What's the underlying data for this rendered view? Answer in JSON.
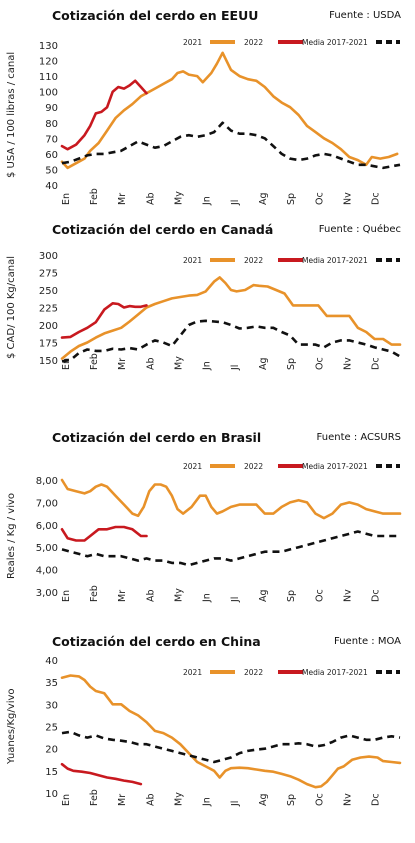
{
  "legend_labels": [
    "2021",
    "2022",
    "Media 2017-2021"
  ],
  "colors": {
    "y2021": "#e8922a",
    "y2022": "#c8191f",
    "media": "#111111"
  },
  "months": [
    "En",
    "Feb",
    "Mr",
    "Ab",
    "My",
    "Jn",
    "Jl",
    "Ag",
    "Sp",
    "Oc",
    "Nv",
    "Dc"
  ],
  "chart_data": [
    {
      "type": "line",
      "title": "Cotización del cerdo en EEUU",
      "source": "Fuente : USDA",
      "ylabel": "$ USA / 100 libras / canal",
      "ylim": [
        40,
        130
      ],
      "yticks": [
        40,
        50,
        60,
        70,
        80,
        90,
        100,
        110,
        120,
        130
      ],
      "xlim": [
        0,
        12
      ],
      "series": [
        {
          "name": "2021",
          "x": [
            0,
            0.2,
            0.5,
            0.8,
            1.0,
            1.3,
            1.6,
            1.9,
            2.2,
            2.5,
            2.8,
            3.0,
            3.3,
            3.6,
            3.9,
            4.1,
            4.3,
            4.5,
            4.8,
            5.0,
            5.3,
            5.5,
            5.7,
            6.0,
            6.3,
            6.6,
            6.9,
            7.2,
            7.5,
            7.8,
            8.1,
            8.4,
            8.7,
            9.0,
            9.3,
            9.6,
            9.9,
            10.2,
            10.5,
            10.8,
            11.0,
            11.3,
            11.6,
            11.9
          ],
          "y": [
            55,
            51,
            54,
            57,
            62,
            67,
            75,
            83,
            88,
            92,
            97,
            99,
            102,
            105,
            108,
            112,
            113,
            111,
            110,
            106,
            112,
            118,
            125,
            114,
            110,
            108,
            107,
            103,
            97,
            93,
            90,
            85,
            78,
            74,
            70,
            67,
            63,
            58,
            56,
            53,
            58,
            57,
            58,
            60
          ]
        },
        {
          "name": "2022",
          "x": [
            0,
            0.2,
            0.5,
            0.8,
            1.0,
            1.2,
            1.4,
            1.6,
            1.8,
            2.0,
            2.2,
            2.4,
            2.6,
            2.8,
            3.0
          ],
          "y": [
            65,
            63,
            66,
            72,
            78,
            86,
            87,
            90,
            100,
            103,
            102,
            104,
            107,
            103,
            99
          ]
        },
        {
          "name": "Media 2017-2021",
          "x": [
            0,
            0.3,
            0.6,
            0.9,
            1.2,
            1.5,
            1.8,
            2.1,
            2.4,
            2.7,
            3.0,
            3.3,
            3.6,
            3.9,
            4.2,
            4.5,
            4.8,
            5.1,
            5.4,
            5.7,
            6.0,
            6.3,
            6.6,
            6.9,
            7.2,
            7.5,
            7.8,
            8.1,
            8.4,
            8.7,
            9.0,
            9.3,
            9.6,
            9.9,
            10.2,
            10.5,
            10.8,
            11.1,
            11.4,
            11.7,
            12.0
          ],
          "y": [
            54,
            55,
            57,
            59,
            60,
            60,
            61,
            62,
            65,
            68,
            66,
            64,
            65,
            68,
            71,
            72,
            71,
            72,
            74,
            80,
            75,
            73,
            73,
            72,
            70,
            65,
            60,
            57,
            56,
            57,
            59,
            60,
            59,
            57,
            55,
            53,
            53,
            52,
            51,
            52,
            53
          ]
        }
      ]
    },
    {
      "type": "line",
      "title": "Cotización del cerdo en Canadá",
      "source": "Fuente : Québec",
      "ylabel": "$ CAD/ 100 Kg/canal",
      "ylim": [
        150,
        300
      ],
      "yticks": [
        150,
        175,
        200,
        225,
        250,
        275,
        300
      ],
      "xlim": [
        0,
        12
      ],
      "series": [
        {
          "name": "2021",
          "x": [
            0,
            0.3,
            0.6,
            0.9,
            1.2,
            1.5,
            1.8,
            2.1,
            2.4,
            2.7,
            3.0,
            3.3,
            3.6,
            3.9,
            4.2,
            4.5,
            4.8,
            5.1,
            5.4,
            5.6,
            5.8,
            6.0,
            6.2,
            6.5,
            6.8,
            7.0,
            7.3,
            7.6,
            7.9,
            8.2,
            8.5,
            8.8,
            9.1,
            9.4,
            9.7,
            10.0,
            10.2,
            10.5,
            10.8,
            11.1,
            11.4,
            11.7,
            12.0
          ],
          "y": [
            152,
            162,
            170,
            175,
            182,
            188,
            192,
            196,
            205,
            215,
            225,
            230,
            234,
            238,
            240,
            242,
            243,
            248,
            262,
            268,
            260,
            250,
            248,
            250,
            257,
            256,
            255,
            250,
            245,
            228,
            228,
            228,
            228,
            213,
            213,
            213,
            213,
            196,
            190,
            180,
            180,
            172,
            172
          ]
        },
        {
          "name": "2022",
          "x": [
            0,
            0.3,
            0.6,
            0.9,
            1.2,
            1.5,
            1.8,
            2.0,
            2.2,
            2.4,
            2.6,
            2.8,
            3.0
          ],
          "y": [
            182,
            183,
            190,
            196,
            204,
            222,
            231,
            230,
            225,
            227,
            226,
            226,
            228
          ]
        },
        {
          "name": "Media 2017-2021",
          "x": [
            0,
            0.3,
            0.6,
            0.9,
            1.2,
            1.5,
            1.8,
            2.1,
            2.4,
            2.7,
            3.0,
            3.3,
            3.6,
            3.9,
            4.2,
            4.5,
            4.8,
            5.1,
            5.4,
            5.7,
            6.0,
            6.3,
            6.6,
            6.9,
            7.2,
            7.5,
            7.8,
            8.1,
            8.4,
            8.7,
            9.0,
            9.3,
            9.6,
            9.9,
            10.2,
            10.5,
            10.8,
            11.1,
            11.4,
            11.7,
            12.0
          ],
          "y": [
            148,
            150,
            160,
            165,
            163,
            163,
            166,
            165,
            167,
            165,
            172,
            178,
            175,
            170,
            185,
            200,
            205,
            206,
            205,
            204,
            200,
            195,
            196,
            198,
            196,
            196,
            190,
            185,
            172,
            172,
            172,
            168,
            175,
            178,
            178,
            175,
            172,
            168,
            165,
            162,
            155
          ]
        }
      ]
    },
    {
      "type": "line",
      "title": "Cotización del cerdo en Brasil",
      "source": "Fuente : ACSURS",
      "ylabel": "Reales / Kg / vivo",
      "ylim": [
        3,
        8
      ],
      "yticks": [
        3.0,
        4.0,
        5.0,
        6.0,
        7.0,
        8.0
      ],
      "yticklabels": [
        "3,00",
        "4,00",
        "5,00",
        "6,00",
        "7,00",
        "8,00"
      ],
      "xlim": [
        0,
        12
      ],
      "series": [
        {
          "name": "2021",
          "x": [
            0,
            0.2,
            0.5,
            0.8,
            1.0,
            1.2,
            1.4,
            1.6,
            1.9,
            2.2,
            2.5,
            2.7,
            2.9,
            3.1,
            3.3,
            3.5,
            3.7,
            3.9,
            4.1,
            4.3,
            4.6,
            4.9,
            5.1,
            5.3,
            5.5,
            5.7,
            6.0,
            6.3,
            6.6,
            6.9,
            7.2,
            7.5,
            7.8,
            8.1,
            8.4,
            8.7,
            9.0,
            9.3,
            9.6,
            9.9,
            10.2,
            10.5,
            10.8,
            11.1,
            11.4,
            11.7,
            12.0
          ],
          "y": [
            8.0,
            7.6,
            7.5,
            7.4,
            7.5,
            7.7,
            7.8,
            7.7,
            7.3,
            6.9,
            6.5,
            6.4,
            6.8,
            7.5,
            7.8,
            7.8,
            7.7,
            7.3,
            6.7,
            6.5,
            6.8,
            7.3,
            7.3,
            6.8,
            6.5,
            6.6,
            6.8,
            6.9,
            6.9,
            6.9,
            6.5,
            6.5,
            6.8,
            7.0,
            7.1,
            7.0,
            6.5,
            6.3,
            6.5,
            6.9,
            7.0,
            6.9,
            6.7,
            6.6,
            6.5,
            6.5,
            6.5
          ]
        },
        {
          "name": "2022",
          "x": [
            0,
            0.2,
            0.5,
            0.8,
            1.0,
            1.3,
            1.6,
            1.9,
            2.2,
            2.5,
            2.8,
            3.0
          ],
          "y": [
            5.8,
            5.4,
            5.3,
            5.3,
            5.5,
            5.8,
            5.8,
            5.9,
            5.9,
            5.8,
            5.5,
            5.5
          ]
        },
        {
          "name": "Media 2017-2021",
          "x": [
            0,
            0.3,
            0.6,
            0.9,
            1.2,
            1.5,
            1.8,
            2.1,
            2.4,
            2.7,
            3.0,
            3.3,
            3.6,
            3.9,
            4.2,
            4.5,
            4.8,
            5.1,
            5.4,
            5.7,
            6.0,
            6.3,
            6.6,
            6.9,
            7.2,
            7.5,
            7.8,
            8.1,
            8.4,
            8.7,
            9.0,
            9.3,
            9.6,
            9.9,
            10.2,
            10.5,
            10.8,
            11.1,
            11.4,
            11.7,
            12.0
          ],
          "y": [
            4.9,
            4.8,
            4.7,
            4.6,
            4.7,
            4.6,
            4.6,
            4.6,
            4.5,
            4.4,
            4.5,
            4.4,
            4.4,
            4.3,
            4.3,
            4.2,
            4.3,
            4.4,
            4.5,
            4.5,
            4.4,
            4.5,
            4.6,
            4.7,
            4.8,
            4.8,
            4.8,
            4.9,
            5.0,
            5.1,
            5.2,
            5.3,
            5.4,
            5.5,
            5.6,
            5.7,
            5.6,
            5.5,
            5.5,
            5.5,
            5.5
          ]
        }
      ]
    },
    {
      "type": "line",
      "title": "Cotización del cerdo en China",
      "source": "Fuente : MOA",
      "ylabel": "Yuanes/Kg/vivo",
      "ylim": [
        10,
        40
      ],
      "yticks": [
        10,
        15,
        20,
        25,
        30,
        35,
        40
      ],
      "xlim": [
        0,
        12
      ],
      "series": [
        {
          "name": "2021",
          "x": [
            0,
            0.3,
            0.6,
            0.8,
            1.0,
            1.2,
            1.5,
            1.8,
            2.1,
            2.4,
            2.7,
            3.0,
            3.3,
            3.6,
            3.9,
            4.2,
            4.5,
            4.8,
            5.1,
            5.4,
            5.6,
            5.8,
            6.0,
            6.3,
            6.6,
            6.9,
            7.2,
            7.5,
            7.8,
            8.1,
            8.4,
            8.7,
            9.0,
            9.2,
            9.4,
            9.6,
            9.8,
            10.0,
            10.3,
            10.6,
            10.9,
            11.2,
            11.4,
            11.7,
            12.0
          ],
          "y": [
            36.0,
            36.5,
            36.3,
            35.5,
            34.0,
            33.0,
            32.5,
            30.0,
            30.0,
            28.5,
            27.5,
            26.0,
            24.0,
            23.5,
            22.5,
            21.0,
            19.0,
            17.0,
            16.0,
            15.0,
            13.5,
            15.0,
            15.6,
            15.7,
            15.6,
            15.3,
            15.0,
            14.8,
            14.3,
            13.8,
            13.0,
            12.0,
            11.3,
            11.5,
            12.5,
            14.0,
            15.5,
            16.0,
            17.5,
            18.0,
            18.2,
            18.0,
            17.2,
            17.0,
            16.8
          ]
        },
        {
          "name": "2022",
          "x": [
            0,
            0.2,
            0.4,
            0.7,
            1.0,
            1.3,
            1.6,
            1.9,
            2.2,
            2.5,
            2.8
          ],
          "y": [
            16.5,
            15.5,
            15.0,
            14.8,
            14.5,
            14.0,
            13.5,
            13.2,
            12.8,
            12.5,
            12.0
          ]
        },
        {
          "name": "Media 2017-2021",
          "x": [
            0,
            0.3,
            0.6,
            0.9,
            1.2,
            1.5,
            1.8,
            2.1,
            2.4,
            2.7,
            3.0,
            3.3,
            3.6,
            3.9,
            4.2,
            4.5,
            4.8,
            5.1,
            5.4,
            5.7,
            6.0,
            6.3,
            6.6,
            6.9,
            7.2,
            7.5,
            7.8,
            8.1,
            8.4,
            8.7,
            9.0,
            9.3,
            9.6,
            9.9,
            10.2,
            10.5,
            10.8,
            11.1,
            11.4,
            11.7,
            12.0
          ],
          "y": [
            23.5,
            23.8,
            23.0,
            22.5,
            23.0,
            22.3,
            22.0,
            21.8,
            21.5,
            21.0,
            21.0,
            20.5,
            20.0,
            19.5,
            19.0,
            18.5,
            18.0,
            17.5,
            17.0,
            17.5,
            18.0,
            19.0,
            19.5,
            19.8,
            20.0,
            20.5,
            21.0,
            21.0,
            21.2,
            21.0,
            20.5,
            20.8,
            21.5,
            22.5,
            23.0,
            22.5,
            22.0,
            22.0,
            22.5,
            22.8,
            22.5
          ]
        }
      ]
    }
  ]
}
